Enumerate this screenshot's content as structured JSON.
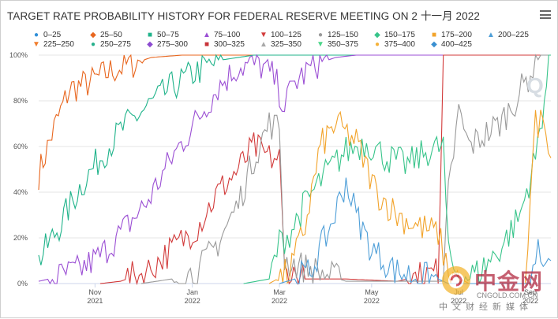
{
  "title": "TARGET RATE PROBABILITY HISTORY FOR FEDERAL RESERVE MEETING ON 2 十一月 2022",
  "watermark": {
    "brand": "中金网",
    "site": "CNGOLD.COM.CN",
    "tagline": "中文财经新媒体",
    "corner": "Q"
  },
  "chart_data": {
    "type": "line",
    "title": "TARGET RATE PROBABILITY HISTORY FOR FEDERAL RESERVE MEETING ON 2 十一月 2022",
    "ylim": [
      0,
      100
    ],
    "y_ticks": [
      "0%",
      "20%",
      "40%",
      "60%",
      "80%",
      "100%"
    ],
    "x_ticks": [
      {
        "month": "Nov",
        "year": "2021",
        "t": 0.11
      },
      {
        "month": "Jan",
        "year": "2022",
        "t": 0.3
      },
      {
        "month": "Mar",
        "year": "2022",
        "t": 0.47
      },
      {
        "month": "May",
        "year": "2022",
        "t": 0.65
      },
      {
        "month": "Jul",
        "year": "2022",
        "t": 0.82
      },
      {
        "month": "Sep",
        "year": "2022",
        "t": 0.96
      }
    ],
    "legend_position": "top",
    "series": [
      {
        "name": "0–25",
        "color": "#2f8fd8",
        "marker": "●",
        "anchors": []
      },
      {
        "name": "25–50",
        "color": "#e8661e",
        "marker": "◆",
        "anchors": [
          [
            0.0,
            48
          ],
          [
            0.03,
            68
          ],
          [
            0.06,
            85
          ],
          [
            0.1,
            88
          ],
          [
            0.14,
            93
          ],
          [
            0.18,
            96
          ],
          [
            0.22,
            99
          ],
          [
            0.28,
            100
          ],
          [
            1.0,
            100
          ]
        ]
      },
      {
        "name": "50–75",
        "color": "#1fb38a",
        "marker": "■",
        "anchors": [
          [
            0.0,
            10
          ],
          [
            0.04,
            25
          ],
          [
            0.08,
            42
          ],
          [
            0.12,
            55
          ],
          [
            0.16,
            67
          ],
          [
            0.21,
            77
          ],
          [
            0.26,
            86
          ],
          [
            0.31,
            93
          ],
          [
            0.36,
            98
          ],
          [
            0.42,
            100
          ],
          [
            1.0,
            100
          ]
        ]
      },
      {
        "name": "75–100",
        "color": "#9b4fd4",
        "marker": "▲",
        "anchors": [
          [
            0.0,
            1
          ],
          [
            0.04,
            3
          ],
          [
            0.08,
            6
          ],
          [
            0.12,
            12
          ],
          [
            0.16,
            22
          ],
          [
            0.21,
            35
          ],
          [
            0.26,
            55
          ],
          [
            0.31,
            72
          ],
          [
            0.35,
            86
          ],
          [
            0.39,
            95
          ],
          [
            0.43,
            96
          ],
          [
            0.46,
            90
          ],
          [
            0.48,
            78
          ],
          [
            0.5,
            88
          ],
          [
            0.54,
            96
          ],
          [
            0.58,
            99
          ],
          [
            0.62,
            100
          ],
          [
            1.0,
            100
          ]
        ]
      },
      {
        "name": "100–125",
        "color": "#d23a3a",
        "marker": "▼",
        "anchors": [
          [
            0.12,
            0
          ],
          [
            0.16,
            1
          ],
          [
            0.21,
            5
          ],
          [
            0.26,
            15
          ],
          [
            0.31,
            25
          ],
          [
            0.35,
            40
          ],
          [
            0.39,
            50
          ],
          [
            0.42,
            60
          ],
          [
            0.45,
            55
          ],
          [
            0.47,
            55
          ],
          [
            0.48,
            5
          ],
          [
            0.52,
            2
          ],
          [
            0.6,
            2
          ],
          [
            0.7,
            1
          ],
          [
            0.78,
            5
          ],
          [
            0.79,
            100
          ],
          [
            1.0,
            100
          ]
        ]
      },
      {
        "name": "125–150",
        "color": "#9a9a9a",
        "marker": "●",
        "anchors": [
          [
            0.2,
            0
          ],
          [
            0.26,
            2
          ],
          [
            0.31,
            5
          ],
          [
            0.35,
            18
          ],
          [
            0.39,
            35
          ],
          [
            0.42,
            55
          ],
          [
            0.45,
            70
          ],
          [
            0.47,
            68
          ],
          [
            0.48,
            10
          ],
          [
            0.6,
            1
          ],
          [
            0.79,
            1
          ],
          [
            0.8,
            40
          ],
          [
            0.82,
            75
          ],
          [
            0.84,
            60
          ],
          [
            0.87,
            65
          ],
          [
            0.9,
            70
          ],
          [
            0.93,
            80
          ],
          [
            0.96,
            92
          ],
          [
            0.98,
            100
          ],
          [
            1.0,
            100
          ]
        ]
      },
      {
        "name": "150–175",
        "color": "#37c48a",
        "marker": "◆",
        "anchors": [
          [
            0.4,
            0
          ],
          [
            0.45,
            2
          ],
          [
            0.47,
            18
          ],
          [
            0.49,
            22
          ],
          [
            0.52,
            35
          ],
          [
            0.56,
            48
          ],
          [
            0.6,
            58
          ],
          [
            0.64,
            62
          ],
          [
            0.68,
            55
          ],
          [
            0.72,
            52
          ],
          [
            0.76,
            58
          ],
          [
            0.79,
            60
          ],
          [
            0.8,
            12
          ],
          [
            0.82,
            2
          ],
          [
            0.86,
            5
          ],
          [
            0.9,
            15
          ],
          [
            0.94,
            30
          ],
          [
            0.97,
            55
          ],
          [
            1.0,
            100
          ]
        ]
      },
      {
        "name": "175–200",
        "color": "#f2a32a",
        "marker": "■",
        "anchors": [
          [
            0.45,
            0
          ],
          [
            0.49,
            5
          ],
          [
            0.52,
            25
          ],
          [
            0.55,
            60
          ],
          [
            0.58,
            70
          ],
          [
            0.62,
            62
          ],
          [
            0.66,
            40
          ],
          [
            0.7,
            30
          ],
          [
            0.74,
            25
          ],
          [
            0.78,
            22
          ],
          [
            0.8,
            5
          ],
          [
            0.84,
            0
          ],
          [
            0.95,
            0
          ],
          [
            0.96,
            40
          ],
          [
            0.97,
            70
          ],
          [
            0.99,
            72
          ],
          [
            1.0,
            55
          ]
        ]
      },
      {
        "name": "200–225",
        "color": "#4f9fd8",
        "marker": "▲",
        "anchors": [
          [
            0.47,
            0
          ],
          [
            0.5,
            2
          ],
          [
            0.53,
            5
          ],
          [
            0.57,
            25
          ],
          [
            0.6,
            45
          ],
          [
            0.62,
            30
          ],
          [
            0.65,
            15
          ],
          [
            0.7,
            5
          ],
          [
            0.74,
            3
          ],
          [
            0.78,
            2
          ],
          [
            0.8,
            0
          ],
          [
            0.96,
            0
          ],
          [
            0.97,
            12
          ],
          [
            0.99,
            15
          ],
          [
            1.0,
            10
          ]
        ]
      },
      {
        "name": "225–250",
        "color": "#f07d2c",
        "marker": "▼",
        "anchors": []
      },
      {
        "name": "250–275",
        "color": "#27b08c",
        "marker": "●",
        "anchors": []
      },
      {
        "name": "275–300",
        "color": "#8c4ad0",
        "marker": "◆",
        "anchors": []
      },
      {
        "name": "300–325",
        "color": "#c8343a",
        "marker": "■",
        "anchors": []
      },
      {
        "name": "325–350",
        "color": "#a8a8a8",
        "marker": "▲",
        "anchors": []
      },
      {
        "name": "350–375",
        "color": "#4dd68a",
        "marker": "▼",
        "anchors": []
      },
      {
        "name": "375–400",
        "color": "#f5b23a",
        "marker": "●",
        "anchors": []
      },
      {
        "name": "400–425",
        "color": "#3a8fd0",
        "marker": "◆",
        "anchors": []
      }
    ]
  }
}
